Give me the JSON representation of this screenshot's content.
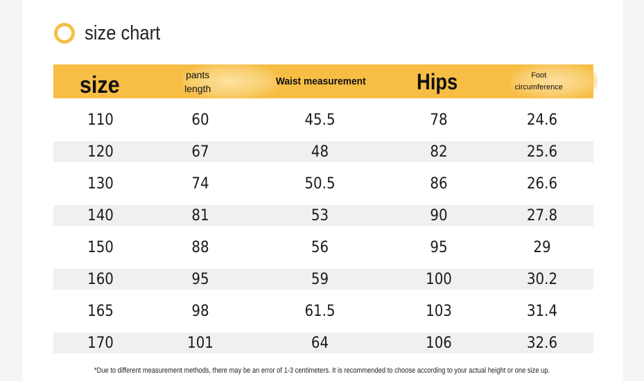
{
  "title": "size chart",
  "table": {
    "headers": {
      "size": "size",
      "pants_line1": "pants",
      "pants_line2": "length",
      "waist": "Waist measurement",
      "hips": "Hips",
      "foot_line1": "Foot",
      "foot_line2": "circumference"
    },
    "rows": [
      [
        "110",
        "60",
        "45.5",
        "78",
        "24.6"
      ],
      [
        "120",
        "67",
        "48",
        "82",
        "25.6"
      ],
      [
        "130",
        "74",
        "50.5",
        "86",
        "26.6"
      ],
      [
        "140",
        "81",
        "53",
        "90",
        "27.8"
      ],
      [
        "150",
        "88",
        "56",
        "95",
        "29"
      ],
      [
        "160",
        "95",
        "59",
        "100",
        "30.2"
      ],
      [
        "165",
        "98",
        "61.5",
        "103",
        "31.4"
      ],
      [
        "170",
        "101",
        "64",
        "106",
        "32.6"
      ]
    ]
  },
  "note": "*Due to different measurement methods, there may be an error of 1-3 centimeters. It is recommended to choose according to your actual height or one size up.",
  "colors": {
    "accent": "#f7bd45",
    "ring": "#f5c04a",
    "stripe": "#f0f0f0"
  }
}
